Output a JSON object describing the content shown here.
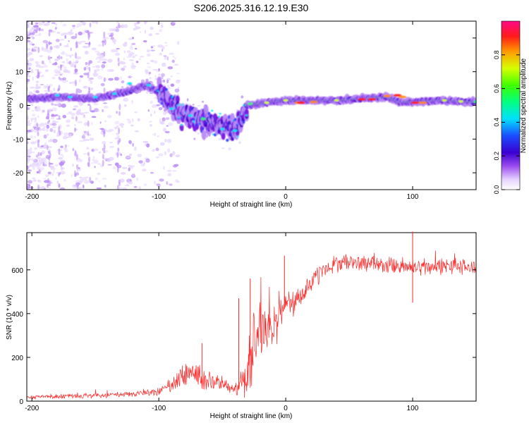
{
  "figure_title": "S206.2025.316.12.19.E30",
  "colors": {
    "snr_line": "#ff2a2a",
    "cmap": [
      "#ffffff",
      "#e7d6ff",
      "#b98af5",
      "#7a18e0",
      "#4a00c8",
      "#2a3cff",
      "#00e6ff",
      "#33ff66",
      "#d8ff33",
      "#ff8a1a",
      "#ff1a1a",
      "#ff1a80"
    ]
  },
  "chart_data": [
    {
      "type": "heatmap",
      "name": "spectrogram",
      "title": "S206.2025.316.12.19.E30",
      "xlabel": "Height of straight line (km)",
      "ylabel": "Frequency (Hz)",
      "xlim": [
        -204,
        150
      ],
      "ylim": [
        -25,
        25
      ],
      "xticks": [
        -200,
        -100,
        0,
        100
      ],
      "xtick_labels": [
        "-200",
        "-100",
        "0",
        "100"
      ],
      "yticks": [
        20,
        10,
        0,
        -10,
        -20
      ],
      "ytick_labels": [
        "20",
        "10",
        "0",
        "-10",
        "-20"
      ],
      "ridge": {
        "x": [
          -200,
          -175,
          -150,
          -125,
          -110,
          -100,
          -90,
          -80,
          -70,
          -60,
          -50,
          -40,
          -33,
          -30,
          -20,
          -10,
          0,
          20,
          40,
          60,
          80,
          90,
          100,
          120,
          150
        ],
        "freq": [
          2,
          2.5,
          2,
          4,
          6,
          4,
          0,
          -3,
          -4,
          -5,
          -6,
          -7,
          -3,
          0,
          0.5,
          1,
          1.5,
          1.5,
          1.5,
          2,
          2.5,
          1,
          1,
          1.5,
          1
        ]
      },
      "colorbar": {
        "label": "Normalized spectral amplitude",
        "range": [
          0,
          1
        ],
        "ticks": [
          0.0,
          0.2,
          0.4,
          0.6,
          0.8
        ],
        "tick_labels": [
          "0.0",
          "0.2",
          "0.4",
          "0.6",
          "0.8"
        ]
      }
    },
    {
      "type": "line",
      "name": "snr",
      "xlabel": "Height of straight line (km)",
      "ylabel": "SNR (10 * v/v)",
      "xlim": [
        -204,
        150
      ],
      "ylim": [
        0,
        770
      ],
      "xticks": [
        -200,
        -100,
        0,
        100
      ],
      "xtick_labels": [
        "-200",
        "-100",
        "0",
        "100"
      ],
      "yticks": [
        0,
        200,
        400,
        600
      ],
      "ytick_labels": [
        "0",
        "200",
        "400",
        "600"
      ],
      "series": [
        {
          "name": "SNR",
          "x": [
            -204,
            -180,
            -160,
            -140,
            -120,
            -100,
            -90,
            -80,
            -70,
            -60,
            -50,
            -40,
            -35,
            -30,
            -25,
            -20,
            -15,
            -10,
            -5,
            0,
            5,
            10,
            20,
            30,
            40,
            50,
            60,
            70,
            80,
            90,
            95,
            100,
            105,
            110,
            130,
            150
          ],
          "mean": [
            18,
            22,
            25,
            28,
            32,
            45,
            70,
            120,
            130,
            85,
            75,
            60,
            70,
            160,
            280,
            320,
            330,
            340,
            380,
            430,
            450,
            470,
            540,
            600,
            630,
            635,
            630,
            625,
            620,
            615,
            615,
            610,
            610,
            615,
            615,
            610
          ],
          "spread": [
            10,
            12,
            14,
            15,
            18,
            25,
            45,
            80,
            80,
            60,
            40,
            30,
            80,
            200,
            200,
            150,
            120,
            120,
            120,
            90,
            80,
            70,
            60,
            50,
            45,
            45,
            45,
            45,
            45,
            50,
            50,
            50,
            45,
            45,
            45,
            45
          ],
          "spikes": [
            {
              "x": 100,
              "y": 775
            },
            {
              "x": 100,
              "y": 450
            },
            {
              "x": -1,
              "y": 665
            },
            {
              "x": -28,
              "y": 560
            },
            {
              "x": -66,
              "y": 265
            },
            {
              "x": -37,
              "y": 470
            }
          ]
        }
      ]
    }
  ]
}
